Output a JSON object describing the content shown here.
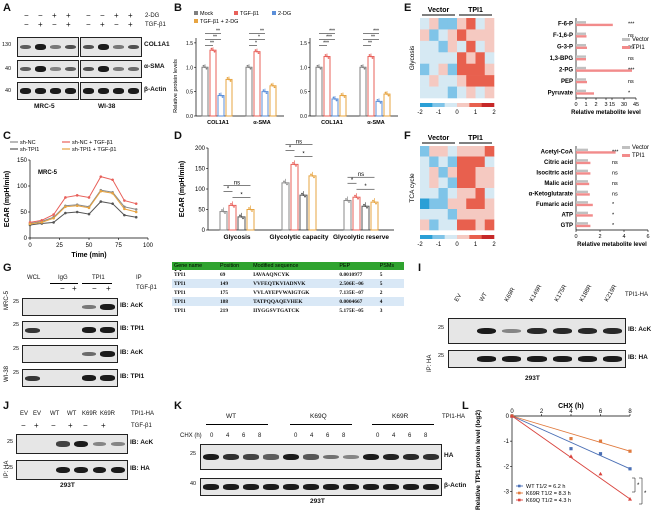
{
  "panels": {
    "A": "A",
    "B": "B",
    "C": "C",
    "D": "D",
    "E": "E",
    "F": "F",
    "G": "G",
    "H": "H",
    "I": "I",
    "J": "J",
    "K": "K",
    "L": "L"
  },
  "panelA": {
    "row_labels": [
      "2-DG",
      "TGF-β1"
    ],
    "signs_2dg": [
      "−",
      "−",
      "+",
      "+",
      "−",
      "−",
      "+",
      "+"
    ],
    "signs_tgf": [
      "−",
      "+",
      "−",
      "+",
      "−",
      "+",
      "−",
      "+"
    ],
    "blots": [
      "COL1A1",
      "α-SMA",
      "β-Actin"
    ],
    "mw": [
      "130",
      "40",
      "40"
    ],
    "cells": [
      "MRC-5",
      "WI-38"
    ]
  },
  "panelB": {
    "legend": [
      "Mock",
      "TGF-β1",
      "2-DG",
      "TGF-β1 + 2-DG"
    ],
    "ylabel": "Relative protein levels",
    "groups": [
      "COL1A1",
      "α-SMA"
    ],
    "yticks": [
      "0.0",
      "0.5",
      "1.0",
      "1.5"
    ],
    "sig": [
      "**",
      "**",
      "**",
      "*",
      "*",
      "**",
      "***",
      "***",
      "***",
      "**",
      "**",
      "***"
    ]
  },
  "panelC": {
    "legend": [
      "sh-NC",
      "sh-TPI1",
      "sh-NC + TGF-β1",
      "sh-TPI1 + TGF-β1"
    ],
    "cell": "MRC-5",
    "ylabel": "ECAR (mpH/min)",
    "xlabel": "Time (min)",
    "xticks": [
      "0",
      "25",
      "50",
      "75",
      "100"
    ],
    "yticks": [
      "0",
      "50",
      "100",
      "150"
    ]
  },
  "panelD": {
    "ylabel": "ECAR (mpH/min)",
    "groups": [
      "Glycosis",
      "Glycolytic capacity",
      "Glycolytic reserve"
    ],
    "yticks": [
      "0",
      "50",
      "100",
      "150",
      "200"
    ],
    "sig": [
      "ns",
      "*",
      "*",
      "ns",
      "*",
      "*",
      "ns",
      "*",
      "*"
    ]
  },
  "panelE": {
    "groups": [
      "Vector",
      "TPI1"
    ],
    "side": "Glycosis",
    "metabolites": [
      "F-6-P",
      "F-1,6-P",
      "G-3-P",
      "1,3-BPG",
      "2-PG",
      "PEP",
      "Pyruvate"
    ],
    "legend": [
      "Vector",
      "TPI1"
    ],
    "xlabel": "Relative metabolite level",
    "xticks": [
      "0",
      "1",
      "2",
      "3",
      "15",
      "30",
      "45"
    ],
    "scale": [
      "-2",
      "-1",
      "0",
      "1",
      "2"
    ],
    "sig": [
      "***",
      "ns",
      "ns",
      "ns",
      "***",
      "ns",
      "*"
    ]
  },
  "panelF": {
    "groups": [
      "Vector",
      "TPI1"
    ],
    "side": "TCA cycle",
    "metabolites": [
      "Acetyl-CoA",
      "Citric acid",
      "Isocitric acid",
      "Malic acid",
      "α-Ketoglutarate",
      "Fumaric acid",
      "ATP",
      "GTP"
    ],
    "legend": [
      "Vector",
      "TPI1"
    ],
    "xlabel": "Relative metabolite level",
    "xticks": [
      "0",
      "2",
      "4",
      "6"
    ],
    "scale": [
      "-2",
      "-1",
      "0",
      "1",
      "2"
    ],
    "sig": [
      "***",
      "ns",
      "ns",
      "ns",
      "ns",
      "*",
      "*",
      "*"
    ]
  },
  "panelG": {
    "wcl": "WCL",
    "igg": "IgG",
    "tpi1": "TPI1",
    "ip": "IP",
    "tgf": "TGF-β1",
    "signs": [
      "−",
      "+",
      "−",
      "+"
    ],
    "cells": [
      "MRC-5",
      "WI-38"
    ],
    "ib": [
      "IB: AcK",
      "IB: TPI1",
      "IB: AcK",
      "IB: TPI1"
    ],
    "mw": [
      "25",
      "25",
      "25",
      "25"
    ]
  },
  "panelH": {
    "headers": [
      "Gene name",
      "Position",
      "Modified sequence",
      "PEP",
      "PSMs"
    ],
    "rows": [
      [
        "TPI1",
        "69",
        "IAVAAQNCYK",
        "0.0010977",
        "5"
      ],
      [
        "TPI1",
        "149",
        "VVFEQTKVIADNVK",
        "2.506E−06",
        "5"
      ],
      [
        "TPI1",
        "175",
        "VVLAYEPVWAIGTGK",
        "7.135E−07",
        "2"
      ],
      [
        "TPI1",
        "188",
        "TATPQQAQEVHEK",
        "0.0004667",
        "4"
      ],
      [
        "TPI1",
        "219",
        "IIYGGSVTGATCK",
        "5.175E−05",
        "3"
      ]
    ]
  },
  "panelI": {
    "lanes": [
      "EV",
      "WT",
      "K69R",
      "K149R",
      "K175R",
      "K188R",
      "K219R"
    ],
    "tag": "TPI1-HA",
    "ip": "IP: HA",
    "ib": [
      "IB: AcK",
      "IB: HA"
    ],
    "mw": [
      "25",
      "25"
    ],
    "cell": "293T"
  },
  "panelJ": {
    "lanes": [
      "EV",
      "EV",
      "WT",
      "WT",
      "K69R",
      "K69R"
    ],
    "tag": "TPI1-HA",
    "tgf": "TGF-β1",
    "signs": [
      "−",
      "+",
      "−",
      "+",
      "−",
      "+"
    ],
    "ip": "IP: HA",
    "ib": [
      "IB: AcK",
      "IB: HA"
    ],
    "mw": [
      "25",
      "25"
    ],
    "cell": "293T"
  },
  "panelK": {
    "groups": [
      "WT",
      "K69Q",
      "K69R"
    ],
    "tag": "TPI1-HA",
    "chx": "CHX (h)",
    "times": [
      "0",
      "4",
      "6",
      "8",
      "0",
      "4",
      "6",
      "8",
      "0",
      "4",
      "6",
      "8"
    ],
    "ib": [
      "HA",
      "β-Actin"
    ],
    "mw": [
      "25",
      "40"
    ],
    "cell": "293T"
  },
  "panelL": {
    "title": "CHX (h)",
    "xticks": [
      "0",
      "2",
      "4",
      "6",
      "8"
    ],
    "yticks": [
      "0",
      "-1",
      "-2",
      "-3"
    ],
    "ylabel": "Relative TPI1 protein level (log2)",
    "legend": [
      "WT T1/2 = 6.2 h",
      "K69R T1/2 = 8.3 h",
      "K69Q T1/2 = 4.3 h"
    ],
    "sig": [
      "*",
      "*"
    ]
  },
  "colors": {
    "mock": "#7f7f7f",
    "tgf": "#e8605a",
    "dg": "#5b8fd9",
    "combo": "#e7a441",
    "vector": "#c0c0c0",
    "tpi1": "#f28b8b",
    "table_header": "#2fa32f"
  },
  "chart_data": [
    {
      "type": "bar",
      "title": "B left",
      "categories": [
        "COL1A1",
        "α-SMA"
      ],
      "series": [
        {
          "name": "Mock",
          "values": [
            1.0,
            1.0
          ]
        },
        {
          "name": "TGF-β1",
          "values": [
            1.35,
            1.32
          ]
        },
        {
          "name": "2-DG",
          "values": [
            0.42,
            0.5
          ]
        },
        {
          "name": "TGF-β1 + 2-DG",
          "values": [
            0.75,
            0.62
          ]
        }
      ],
      "ylabel": "Relative protein levels",
      "ylim": [
        0,
        1.6
      ]
    },
    {
      "type": "bar",
      "title": "B right",
      "categories": [
        "COL1A1",
        "α-SMA"
      ],
      "series": [
        {
          "name": "Mock",
          "values": [
            1.0,
            1.0
          ]
        },
        {
          "name": "TGF-β1",
          "values": [
            1.22,
            1.22
          ]
        },
        {
          "name": "2-DG",
          "values": [
            0.35,
            0.3
          ]
        },
        {
          "name": "TGF-β1 + 2-DG",
          "values": [
            0.42,
            0.45
          ]
        }
      ],
      "ylabel": "Relative protein levels",
      "ylim": [
        0,
        1.6
      ]
    },
    {
      "type": "line",
      "title": "C",
      "x": [
        0,
        10,
        20,
        30,
        40,
        50,
        60,
        70,
        80,
        90
      ],
      "series": [
        {
          "name": "sh-NC",
          "values": [
            28,
            32,
            40,
            62,
            64,
            60,
            92,
            88,
            60,
            55
          ]
        },
        {
          "name": "sh-TPI1",
          "values": [
            25,
            28,
            30,
            48,
            50,
            46,
            70,
            66,
            44,
            40
          ]
        },
        {
          "name": "sh-NC + TGF-β1",
          "values": [
            30,
            34,
            45,
            78,
            82,
            78,
            118,
            112,
            72,
            66
          ]
        },
        {
          "name": "sh-TPI1 + TGF-β1",
          "values": [
            27,
            30,
            38,
            60,
            62,
            58,
            90,
            86,
            56,
            50
          ]
        }
      ],
      "xlabel": "Time (min)",
      "ylabel": "ECAR (mpH/min)",
      "ylim": [
        0,
        150
      ]
    },
    {
      "type": "bar",
      "title": "D",
      "categories": [
        "Glycosis",
        "Glycolytic capacity",
        "Glycolytic reserve"
      ],
      "series": [
        {
          "name": "sh-NC",
          "values": [
            45,
            115,
            72
          ]
        },
        {
          "name": "sh-TPI1",
          "values": [
            60,
            160,
            80
          ]
        },
        {
          "name": "sh-NC + TGF-β1",
          "values": [
            32,
            85,
            58
          ]
        },
        {
          "name": "sh-TPI1 + TGF-β1",
          "values": [
            50,
            132,
            68
          ]
        }
      ],
      "ylabel": "ECAR (mpH/min)",
      "ylim": [
        0,
        200
      ]
    },
    {
      "type": "bar",
      "title": "E",
      "categories": [
        "F-6-P",
        "F-1,6-P",
        "G-3-P",
        "1,3-BPG",
        "2-PG",
        "PEP",
        "Pyruvate"
      ],
      "series": [
        {
          "name": "Vector",
          "values": [
            1,
            1,
            1,
            1,
            1,
            1,
            1
          ]
        },
        {
          "name": "TPI1",
          "values": [
            16,
            1.05,
            1.1,
            1.0,
            40,
            1.1,
            1.8
          ]
        }
      ],
      "xlabel": "Relative metabolite level"
    },
    {
      "type": "bar",
      "title": "F",
      "categories": [
        "Acetyl-CoA",
        "Citric acid",
        "Isocitric acid",
        "Malic acid",
        "α-Ketoglutarate",
        "Fumaric acid",
        "ATP",
        "GTP"
      ],
      "series": [
        {
          "name": "Vector",
          "values": [
            1,
            1,
            1,
            1,
            1,
            1,
            1,
            1
          ]
        },
        {
          "name": "TPI1",
          "values": [
            3.3,
            1.2,
            1.2,
            1.1,
            1.15,
            1.4,
            1.4,
            1.2
          ]
        }
      ],
      "xlabel": "Relative metabolite level",
      "xlim": [
        0,
        6
      ]
    },
    {
      "type": "line",
      "title": "L",
      "x": [
        0,
        4,
        6,
        8
      ],
      "series": [
        {
          "name": "WT",
          "values": [
            0,
            -1.3,
            -1.5,
            -2.1
          ]
        },
        {
          "name": "K69R",
          "values": [
            0,
            -0.9,
            -1.0,
            -1.4
          ]
        },
        {
          "name": "K69Q",
          "values": [
            0,
            -1.6,
            -2.3,
            -3.3
          ]
        }
      ],
      "xlabel": "CHX (h)",
      "ylabel": "Relative TPI1 protein level (log2)",
      "ylim": [
        -3.5,
        0
      ]
    }
  ]
}
